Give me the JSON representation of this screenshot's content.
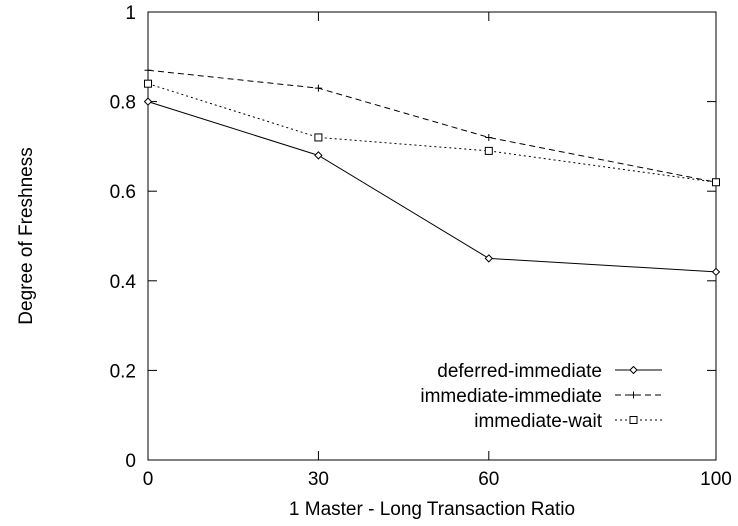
{
  "chart_data": {
    "type": "line",
    "title": "",
    "xlabel": "1 Master - Long Transaction Ratio",
    "ylabel": "Degree of Freshness",
    "x": [
      0,
      30,
      60,
      100
    ],
    "xticks": [
      "0",
      "30",
      "60",
      "100"
    ],
    "yticks": [
      "0",
      "0.2",
      "0.4",
      "0.6",
      "0.8",
      "1"
    ],
    "xlim": [
      0,
      100
    ],
    "ylim": [
      0,
      1
    ],
    "grid": false,
    "legend_position": "bottom-right",
    "series": [
      {
        "name": "deferred-immediate",
        "values": [
          0.8,
          0.68,
          0.45,
          0.42
        ],
        "marker": "diamond",
        "dash": "solid"
      },
      {
        "name": "immediate-immediate",
        "values": [
          0.87,
          0.83,
          0.72,
          0.62
        ],
        "marker": "plus",
        "dash": "dashed"
      },
      {
        "name": "immediate-wait",
        "values": [
          0.84,
          0.72,
          0.69,
          0.62
        ],
        "marker": "square",
        "dash": "dotted"
      }
    ]
  }
}
